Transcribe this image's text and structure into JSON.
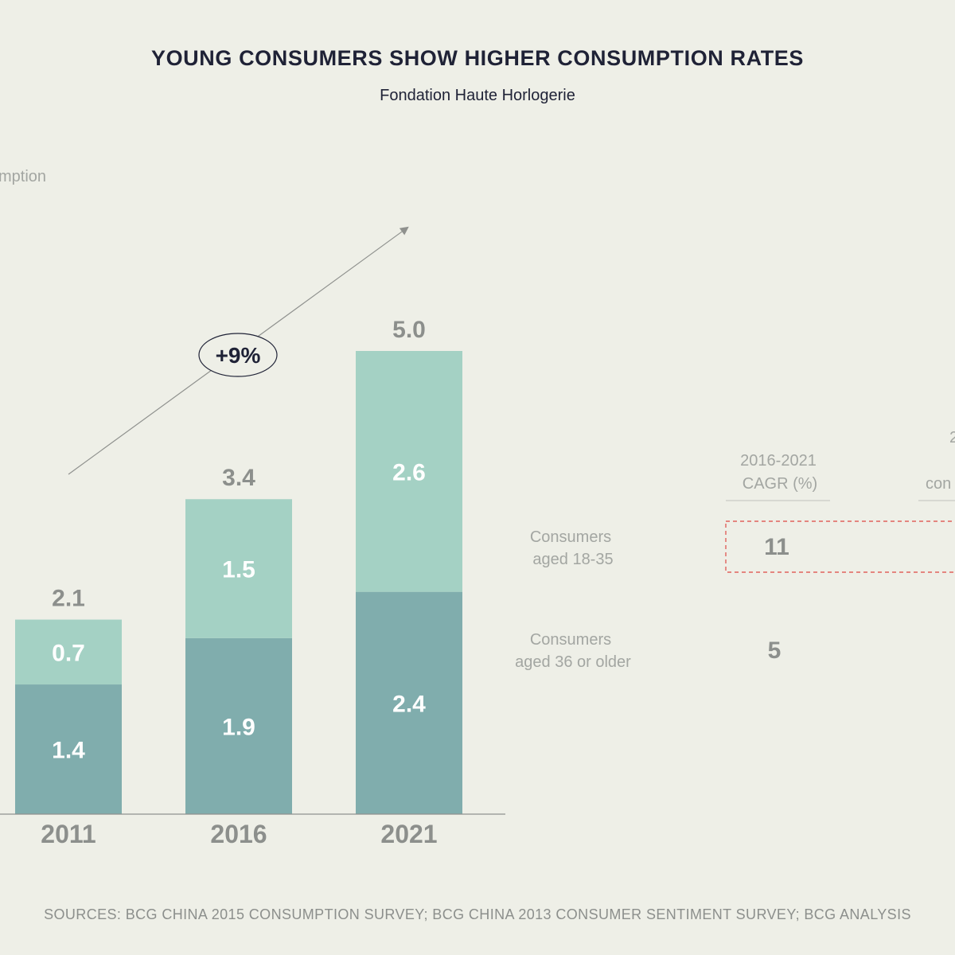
{
  "colors": {
    "young": "#a4d1c4",
    "older": "#80adad",
    "accent_dash": "#e0625d",
    "axis": "#8f918e",
    "arrow": "#8f918e"
  },
  "chart_data": {
    "type": "bar",
    "stacked": true,
    "title": "YOUNG CONSUMERS SHOW HIGHER CONSUMPTION RATES",
    "subtitle": "Fondation Haute Horlogerie",
    "ylabel_fragment": "mption",
    "categories": [
      "2011",
      "2016",
      "2021"
    ],
    "series": [
      {
        "name": "Consumers aged 36 or older",
        "values": [
          1.4,
          1.9,
          2.4
        ],
        "labels": [
          "1.4",
          "1.9",
          "2.4"
        ]
      },
      {
        "name": "Consumers aged 18-35",
        "values": [
          0.7,
          1.5,
          2.6
        ],
        "labels": [
          "0.7",
          "1.5",
          "2.6"
        ]
      }
    ],
    "totals": [
      "2.1",
      "3.4",
      "5.0"
    ],
    "ylim": [
      0,
      5.5
    ],
    "growth_label": "+9%",
    "legend": {
      "young_line1": "Consumers",
      "young_line2": "aged 18-35",
      "older_line1": "Consumers",
      "older_line2": "aged 36 or older"
    },
    "table": {
      "header_line1": "2016-2021",
      "header_line2": "CAGR (%)",
      "young_value": "11",
      "older_value": "5",
      "cut_header_line1": "2",
      "cut_header_line2": "con"
    },
    "source": "SOURCES: BCG CHINA 2015 CONSUMPTION SURVEY; BCG CHINA 2013 CONSUMER SENTIMENT SURVEY; BCG ANALYSIS"
  }
}
